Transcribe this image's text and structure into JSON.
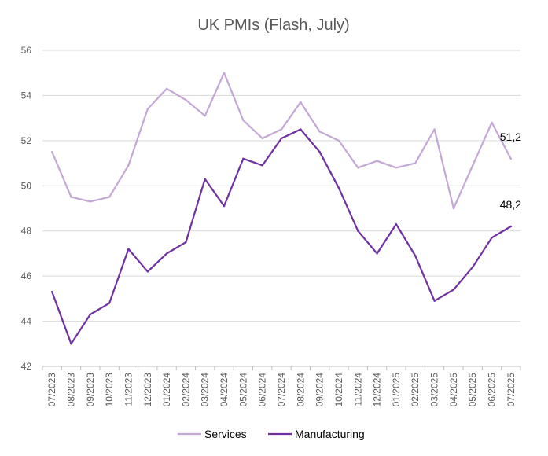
{
  "chart_data": {
    "type": "line",
    "title": "UK PMIs (Flash, July)",
    "xlabel": "",
    "ylabel": "",
    "ylim": [
      42,
      56
    ],
    "yticks": [
      42,
      44,
      46,
      48,
      50,
      52,
      54,
      56
    ],
    "grid": true,
    "legend_position": "bottom",
    "categories": [
      "07/2023",
      "08/2023",
      "09/2023",
      "10/2023",
      "11/2023",
      "12/2023",
      "01/2024",
      "02/2024",
      "03/2024",
      "04/2024",
      "05/2024",
      "06/2024",
      "07/2024",
      "08/2024",
      "09/2024",
      "10/2024",
      "11/2024",
      "12/2024",
      "01/2025",
      "02/2025",
      "03/2025",
      "04/2025",
      "05/2025",
      "06/2025",
      "07/2025"
    ],
    "series": [
      {
        "name": "Services",
        "color": "#C4A7D6",
        "values": [
          51.5,
          49.5,
          49.3,
          49.5,
          50.9,
          53.4,
          54.3,
          53.8,
          53.1,
          55.0,
          52.9,
          52.1,
          52.5,
          53.7,
          52.4,
          52.0,
          50.8,
          51.1,
          50.8,
          51.0,
          52.5,
          49.0,
          50.9,
          52.8,
          51.2
        ]
      },
      {
        "name": "Manufacturing",
        "color": "#7030A0",
        "values": [
          45.3,
          43.0,
          44.3,
          44.8,
          47.2,
          46.2,
          47.0,
          47.5,
          50.3,
          49.1,
          51.2,
          50.9,
          52.1,
          52.5,
          51.5,
          49.9,
          48.0,
          47.0,
          48.3,
          46.9,
          44.9,
          45.4,
          46.4,
          47.7,
          48.2
        ]
      }
    ],
    "annotations": [
      {
        "text": "51,2",
        "series": "Services",
        "index": 24
      },
      {
        "text": "48,2",
        "series": "Manufacturing",
        "index": 24
      }
    ]
  }
}
